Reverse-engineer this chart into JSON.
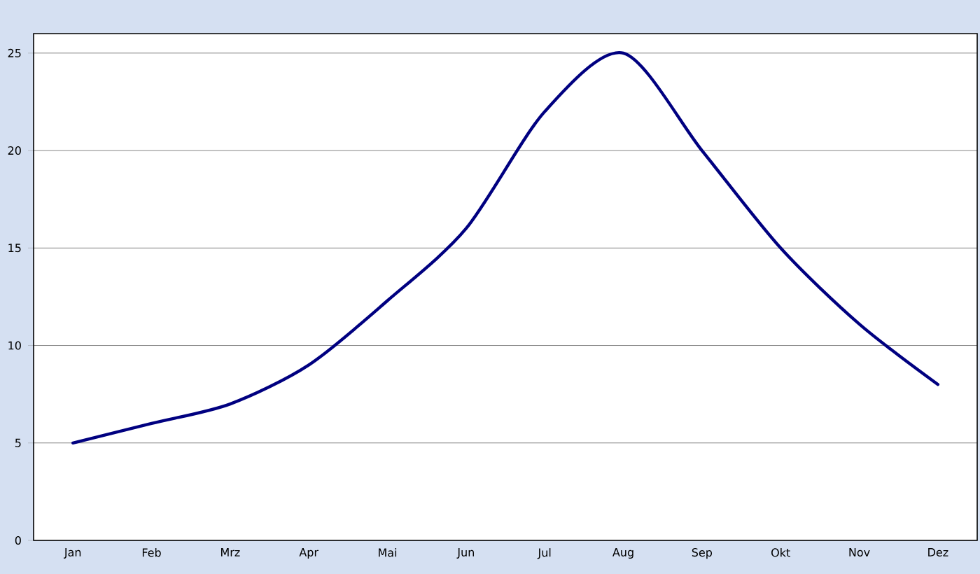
{
  "chart_data": {
    "type": "line",
    "categories": [
      "Jan",
      "Feb",
      "Mrz",
      "Apr",
      "Mai",
      "Jun",
      "Jul",
      "Aug",
      "Sep",
      "Okt",
      "Nov",
      "Dez"
    ],
    "series": [
      {
        "color": "#000080",
        "values": [
          5,
          6,
          7,
          9,
          12.3,
          16,
          22,
          25,
          20,
          15,
          11.1,
          8
        ]
      }
    ],
    "ylim": [
      0,
      26
    ],
    "yticks": [
      0,
      5,
      10,
      15,
      20,
      25
    ],
    "grid": "y",
    "marker": "none",
    "line_style": "solid"
  }
}
